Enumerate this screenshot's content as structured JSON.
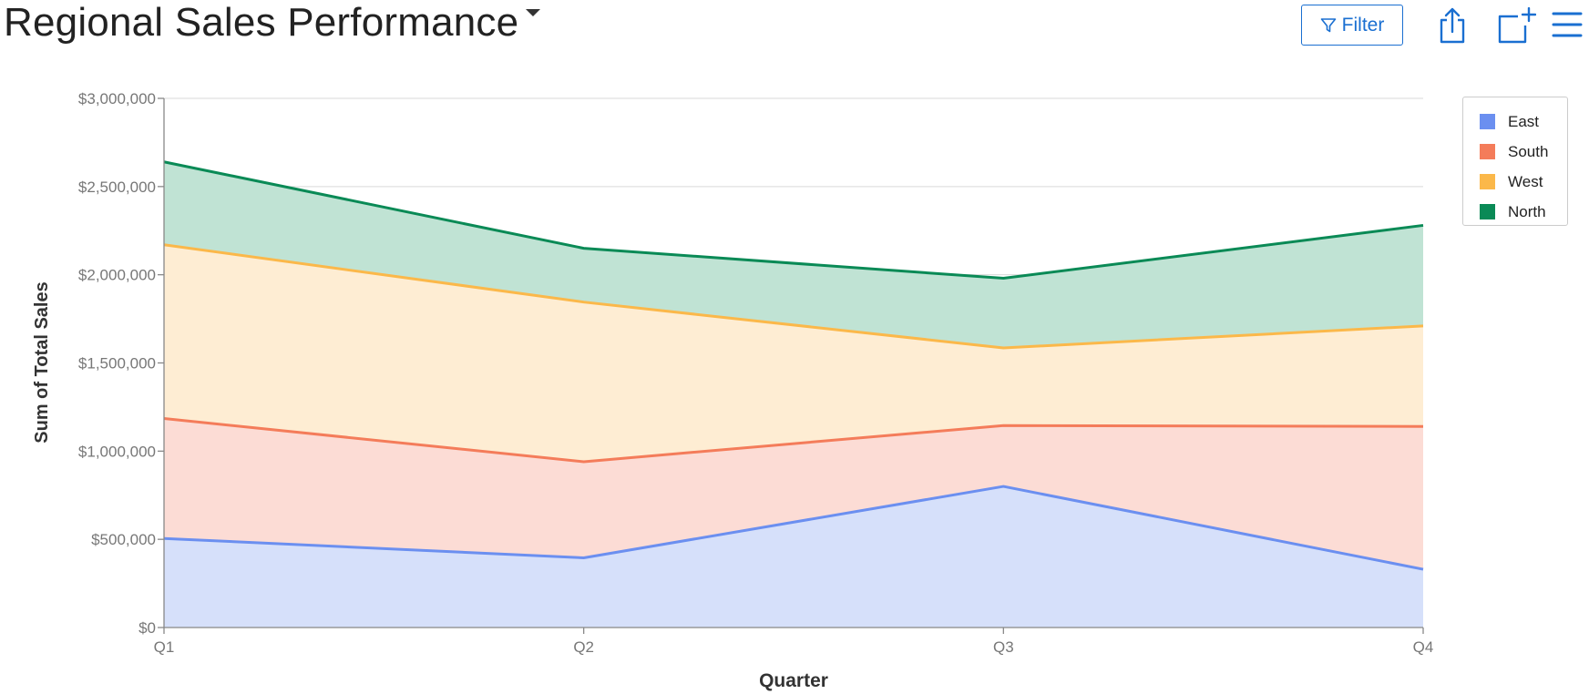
{
  "header": {
    "title": "Regional Sales Performance",
    "filter_label": "Filter",
    "accent_color": "#1a6fd1"
  },
  "toolbar": {
    "icons": [
      "share-icon",
      "add-to-dashboard-icon",
      "menu-icon"
    ]
  },
  "chart_data": {
    "type": "area",
    "stacked": true,
    "categories": [
      "Q1",
      "Q2",
      "Q3",
      "Q4"
    ],
    "xlabel": "Quarter",
    "ylabel": "Sum of Total Sales",
    "ylim": [
      0,
      3000000
    ],
    "yticks": [
      0,
      500000,
      1000000,
      1500000,
      2000000,
      2500000,
      3000000
    ],
    "ytick_labels": [
      "$0",
      "$500,000",
      "$1,000,000",
      "$1,500,000",
      "$2,000,000",
      "$2,500,000",
      "$3,000,000"
    ],
    "grid": true,
    "legend_position": "top-right",
    "series": [
      {
        "name": "East",
        "color": "#6b8ff0",
        "fill": "#d6e0fa",
        "values": [
          505000,
          395000,
          800000,
          330000
        ]
      },
      {
        "name": "South",
        "color": "#f47c5a",
        "fill": "#fcdcd5",
        "values": [
          680000,
          545000,
          345000,
          810000
        ]
      },
      {
        "name": "West",
        "color": "#fbb84a",
        "fill": "#feedd3",
        "values": [
          985000,
          905000,
          440000,
          570000
        ]
      },
      {
        "name": "North",
        "color": "#0a8a56",
        "fill": "#c0e3d4",
        "values": [
          470000,
          305000,
          395000,
          570000
        ]
      }
    ]
  }
}
